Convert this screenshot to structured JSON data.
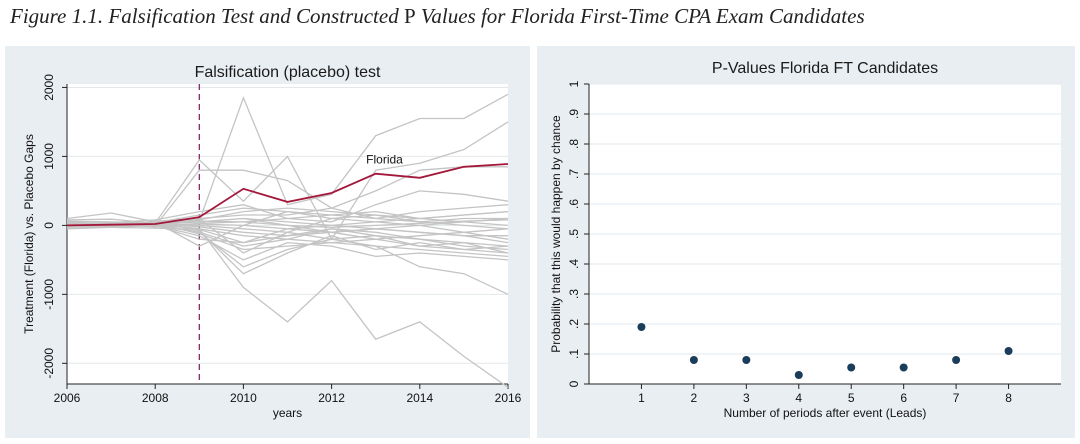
{
  "figure": {
    "caption_prefix": "Figure 1.1. Falsification Test and Constructed ",
    "caption_p": "P",
    "caption_suffix": " Values for Florida First-Time CPA Exam Candidates"
  },
  "chart_data": [
    {
      "type": "line",
      "title": "Falsification (placebo) test",
      "xlabel": "years",
      "ylabel": "Treatment (Florida) vs. Placebo Gaps",
      "xlim": [
        2006,
        2016
      ],
      "ylim": [
        -2300,
        2050
      ],
      "xticks": [
        2006,
        2008,
        2010,
        2012,
        2014,
        2016
      ],
      "yticks": [
        -2000,
        -1000,
        0,
        1000,
        2000
      ],
      "x": [
        2006,
        2007,
        2008,
        2009,
        2010,
        2011,
        2012,
        2013,
        2014,
        2015,
        2016
      ],
      "event_year": 2009,
      "grid": true,
      "treated_label": "Florida",
      "treated_color": "#a3173b",
      "placebo_color": "#c4c4c4",
      "event_line_color": "#7a1a5a",
      "series": [
        {
          "name": "Florida",
          "values": [
            0,
            10,
            20,
            120,
            530,
            340,
            470,
            750,
            690,
            850,
            890
          ]
        },
        {
          "values": [
            0,
            -20,
            40,
            60,
            1850,
            300,
            450,
            1300,
            1550,
            1550,
            1900
          ]
        },
        {
          "values": [
            0,
            -10,
            30,
            950,
            350,
            1000,
            -200,
            800,
            900,
            1100,
            1500
          ]
        },
        {
          "values": [
            0,
            30,
            -10,
            800,
            800,
            650,
            250,
            500,
            800,
            850,
            850
          ]
        },
        {
          "values": [
            0,
            10,
            20,
            -50,
            -900,
            -1400,
            -800,
            -1650,
            -1400,
            -1900,
            -2350
          ]
        },
        {
          "values": [
            0,
            -30,
            10,
            -100,
            -600,
            -350,
            -200,
            -300,
            -600,
            -700,
            -1000
          ]
        },
        {
          "values": [
            50,
            20,
            0,
            -150,
            -500,
            -250,
            -300,
            -450,
            -400,
            -450,
            -500
          ]
        },
        {
          "values": [
            100,
            180,
            50,
            -80,
            -700,
            -400,
            -150,
            -350,
            -250,
            -350,
            -300
          ]
        },
        {
          "values": [
            20,
            40,
            80,
            200,
            300,
            100,
            50,
            300,
            500,
            450,
            350
          ]
        },
        {
          "values": [
            -20,
            0,
            60,
            100,
            150,
            150,
            250,
            100,
            200,
            250,
            300
          ]
        },
        {
          "values": [
            10,
            20,
            0,
            -200,
            -250,
            -50,
            0,
            50,
            100,
            150,
            200
          ]
        },
        {
          "values": [
            0,
            -10,
            20,
            100,
            -400,
            -100,
            100,
            50,
            0,
            -100,
            -200
          ]
        },
        {
          "values": [
            30,
            10,
            40,
            50,
            100,
            0,
            -100,
            -200,
            -300,
            -250,
            -400
          ]
        },
        {
          "values": [
            -10,
            -20,
            50,
            -300,
            0,
            200,
            100,
            150,
            50,
            100,
            100
          ]
        },
        {
          "values": [
            40,
            30,
            20,
            0,
            -50,
            -100,
            -200,
            -150,
            -200,
            -300,
            -350
          ]
        },
        {
          "values": [
            0,
            10,
            -20,
            30,
            50,
            100,
            150,
            200,
            100,
            50,
            0
          ]
        },
        {
          "values": [
            20,
            0,
            10,
            -50,
            -150,
            -200,
            -250,
            -200,
            -150,
            -100,
            -50
          ]
        },
        {
          "values": [
            -30,
            -10,
            30,
            80,
            200,
            250,
            200,
            150,
            100,
            150,
            200
          ]
        },
        {
          "values": [
            60,
            50,
            30,
            -20,
            -100,
            -150,
            -100,
            -50,
            -100,
            -150,
            -250
          ]
        },
        {
          "values": [
            0,
            20,
            40,
            150,
            250,
            200,
            150,
            100,
            50,
            0,
            -50
          ]
        },
        {
          "values": [
            -50,
            -30,
            0,
            -100,
            -300,
            -200,
            -50,
            -100,
            -200,
            -250,
            -300
          ]
        },
        {
          "values": [
            10,
            0,
            -10,
            20,
            0,
            -50,
            -100,
            -50,
            0,
            50,
            100
          ]
        },
        {
          "values": [
            0,
            -20,
            10,
            50,
            100,
            50,
            0,
            -50,
            -100,
            -150,
            -150
          ]
        },
        {
          "values": [
            80,
            90,
            30,
            -120,
            -350,
            -300,
            -250,
            -300,
            -350,
            -400,
            -450
          ]
        },
        {
          "values": [
            0,
            5,
            25,
            60,
            50,
            0,
            -30,
            0,
            30,
            60,
            80
          ]
        },
        {
          "values": [
            -20,
            -30,
            -40,
            -60,
            -250,
            -150,
            -50,
            -150,
            -300,
            -350,
            -400
          ]
        }
      ]
    },
    {
      "type": "scatter",
      "title": "P-Values Florida FT Candidates",
      "xlabel": "Number of periods after event (Leads)",
      "ylabel": "Probability that this would happen by chance",
      "xlim": [
        0,
        9
      ],
      "ylim": [
        0,
        1
      ],
      "xticks": [
        1,
        2,
        3,
        4,
        5,
        6,
        7,
        8
      ],
      "yticks": [
        "0",
        ".1",
        ".2",
        ".3",
        ".4",
        ".5",
        ".6",
        ".7",
        ".8",
        ".9",
        "1"
      ],
      "grid": true,
      "point_color": "#1b3d5c",
      "x": [
        1,
        2,
        3,
        4,
        5,
        6,
        7,
        8
      ],
      "y": [
        0.19,
        0.08,
        0.08,
        0.03,
        0.055,
        0.055,
        0.08,
        0.11
      ]
    }
  ]
}
